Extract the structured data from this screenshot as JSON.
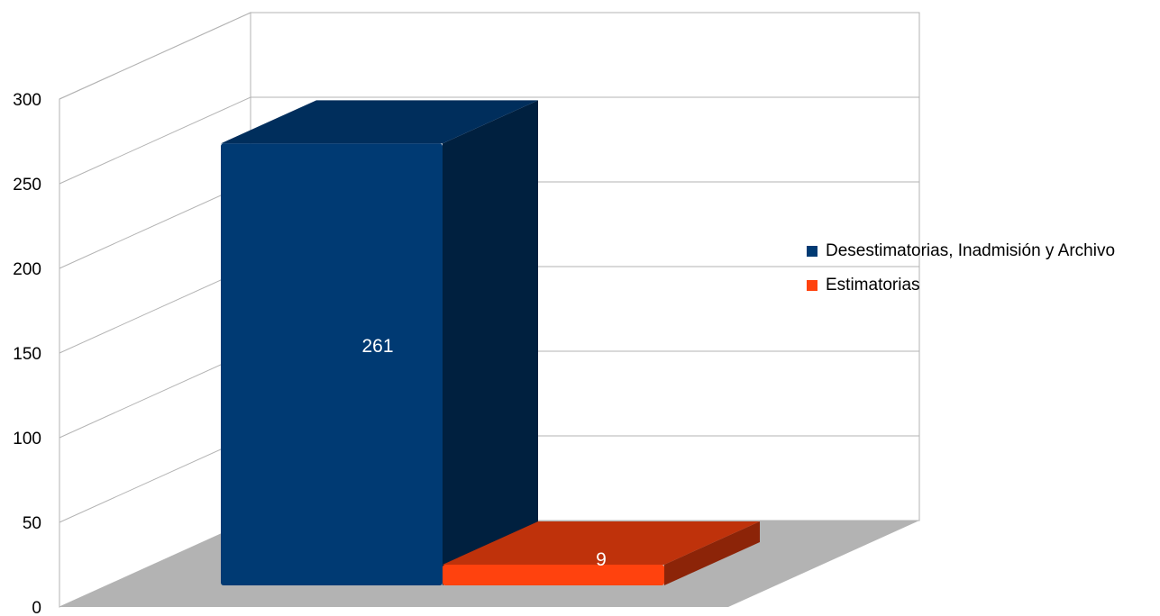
{
  "chart_data": {
    "type": "bar",
    "three_d": true,
    "categories": [
      ""
    ],
    "series": [
      {
        "name": "Desestimatorias, Inadmisión y Archivo",
        "values": [
          261
        ],
        "color": "#003a73"
      },
      {
        "name": "Estimatorias",
        "values": [
          9
        ],
        "color": "#ff420e"
      }
    ],
    "data_labels": [
      "261",
      "9"
    ],
    "title": "",
    "xlabel": "",
    "ylabel": "",
    "ylim": [
      0,
      300
    ],
    "yticks": [
      "0",
      "50",
      "100",
      "150",
      "200",
      "250",
      "300"
    ],
    "grid": true,
    "legend_position": "right"
  }
}
